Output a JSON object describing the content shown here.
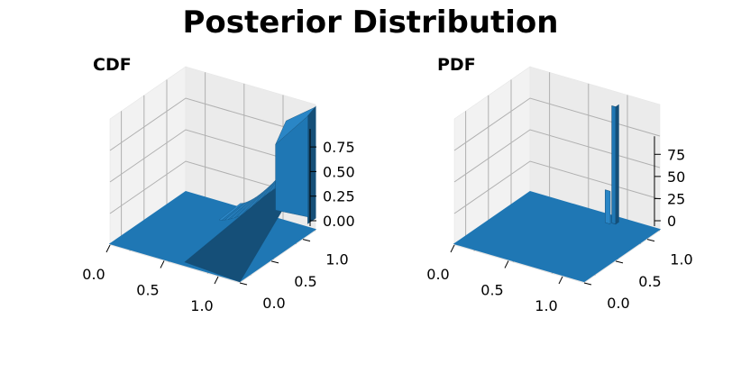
{
  "figure": {
    "title": "Posterior Distribution"
  },
  "colors": {
    "surface": "#1f77b4",
    "surface_dark": "#154f78",
    "surface_light": "#2a86c6"
  },
  "chart_data": [
    {
      "type": "surface3d",
      "title": "CDF",
      "x_ticks": [
        "0.0",
        "0.5",
        "1.0"
      ],
      "y_ticks": [
        "0.0",
        "0.5",
        "1.0"
      ],
      "z_ticks": [
        "0.00",
        "0.25",
        "0.50",
        "0.75"
      ],
      "xlim": [
        0,
        1.2
      ],
      "ylim": [
        0,
        1.2
      ],
      "zlim": [
        0,
        1.0
      ],
      "grid": true
    },
    {
      "type": "surface3d",
      "title": "PDF",
      "x_ticks": [
        "0.0",
        "0.5",
        "1.0"
      ],
      "y_ticks": [
        "0.0",
        "0.5",
        "1.0"
      ],
      "z_ticks": [
        "0",
        "25",
        "50",
        "75"
      ],
      "xlim": [
        0,
        1.2
      ],
      "ylim": [
        0,
        1.2
      ],
      "zlim": [
        0,
        100
      ],
      "grid": true
    }
  ]
}
